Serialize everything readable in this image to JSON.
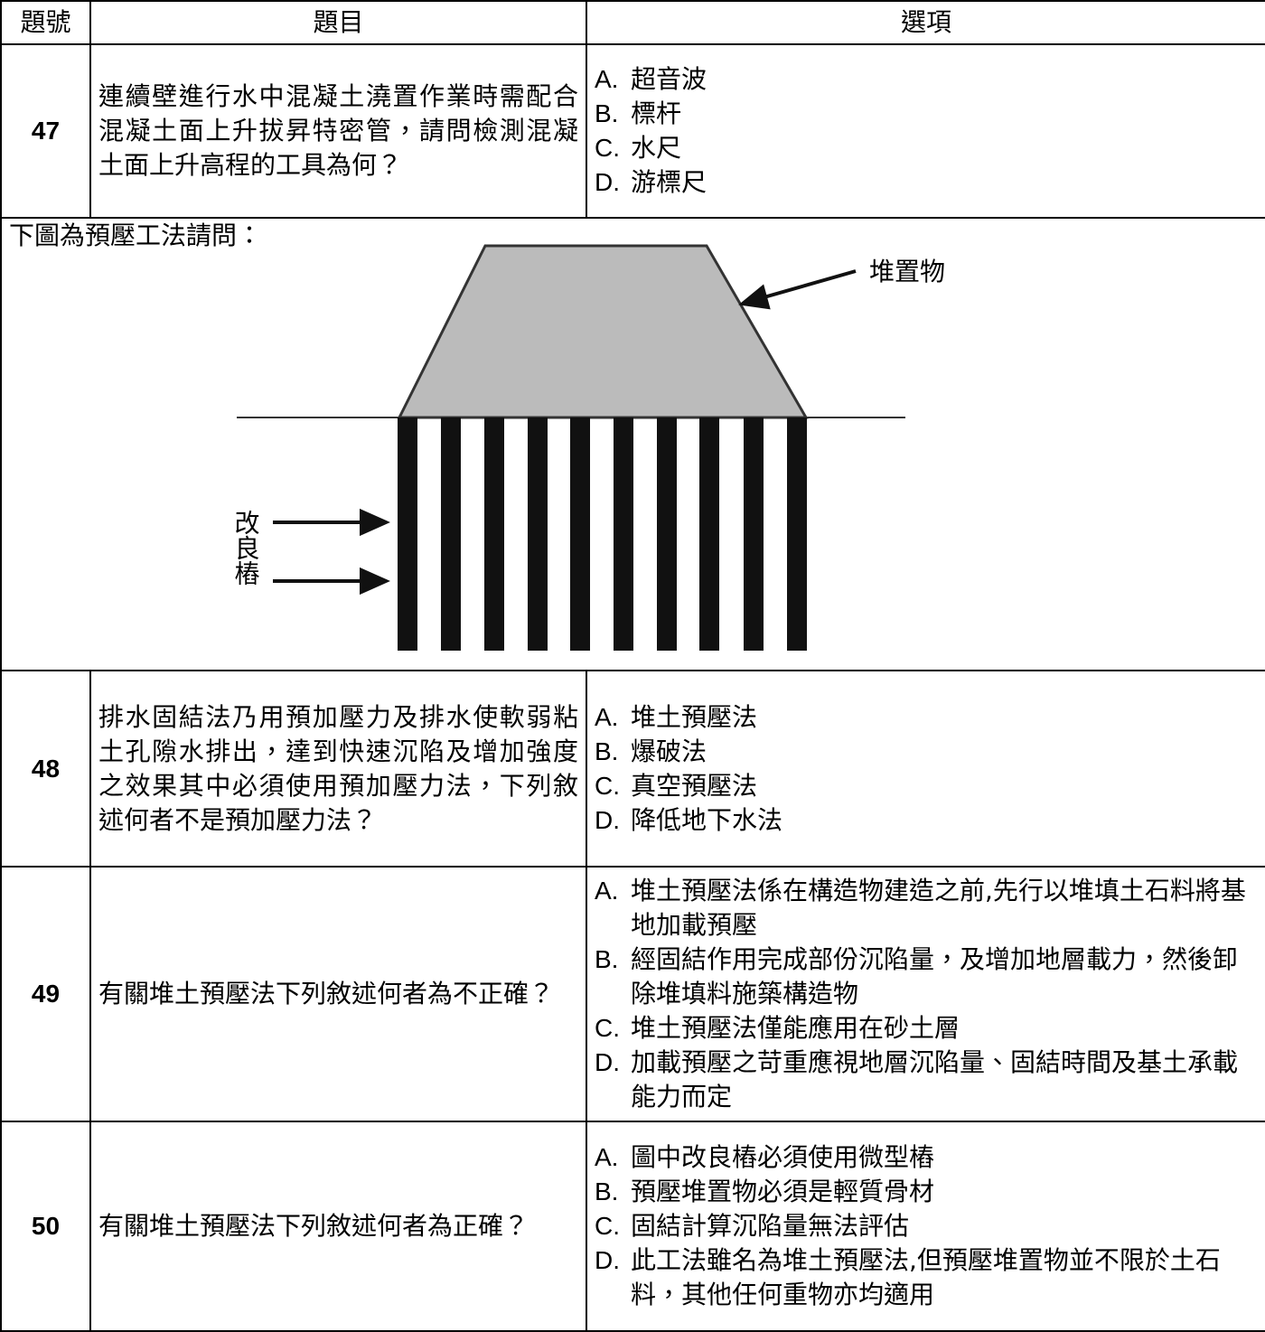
{
  "header": [
    "題號",
    "題目",
    "選項"
  ],
  "questions": [
    {
      "number": 47,
      "text": "連續壁進行水中混凝土澆置作業時需配合混凝土面上升拔昇特密管，請問檢測混凝土面上升高程的工具為何？",
      "options": [
        {
          "letter": "A.",
          "text": "超音波"
        },
        {
          "letter": "B.",
          "text": "標杆"
        },
        {
          "letter": "C.",
          "text": "水尺"
        },
        {
          "letter": "D.",
          "text": "游標尺"
        }
      ]
    },
    {
      "number": 48,
      "text": "排水固結法乃用預加壓力及排水使軟弱粘土孔隙水排出，達到快速沉陷及增加強度之效果其中必須使用預加壓力法，下列敘述何者不是預加壓力法？",
      "options": [
        {
          "letter": "A.",
          "text": "堆土預壓法"
        },
        {
          "letter": "B.",
          "text": "爆破法"
        },
        {
          "letter": "C.",
          "text": "真空預壓法"
        },
        {
          "letter": "D.",
          "text": "降低地下水法"
        }
      ]
    },
    {
      "number": 49,
      "text": "有關堆土預壓法下列敘述何者為不正確？",
      "options": [
        {
          "letter": "A.",
          "text": "堆土預壓法係在構造物建造之前,先行以堆填土石料將基地加載預壓"
        },
        {
          "letter": "B.",
          "text": "經固結作用完成部份沉陷量，及增加地層載力，然後卸除堆填料施築構造物"
        },
        {
          "letter": "C.",
          "text": "堆土預壓法僅能應用在砂土層"
        },
        {
          "letter": "D.",
          "text": "加載預壓之苛重應視地層沉陷量、固結時間及基土承載能力而定"
        }
      ]
    },
    {
      "number": 50,
      "text": "有關堆土預壓法下列敘述何者為正確？",
      "options": [
        {
          "letter": "A.",
          "text": "圖中改良樁必須使用微型樁"
        },
        {
          "letter": "B.",
          "text": "預壓堆置物必須是輕質骨材"
        },
        {
          "letter": "C.",
          "text": "固結計算沉陷量無法評估"
        },
        {
          "letter": "D.",
          "text": "此工法雖名為堆土預壓法,但預壓堆置物並不限於土石料，其他任何重物亦均適用"
        }
      ]
    }
  ],
  "figure": {
    "intro": "下圖為預壓工法請問：",
    "fill_label": "堆置物",
    "pile_label": "改良樁"
  }
}
